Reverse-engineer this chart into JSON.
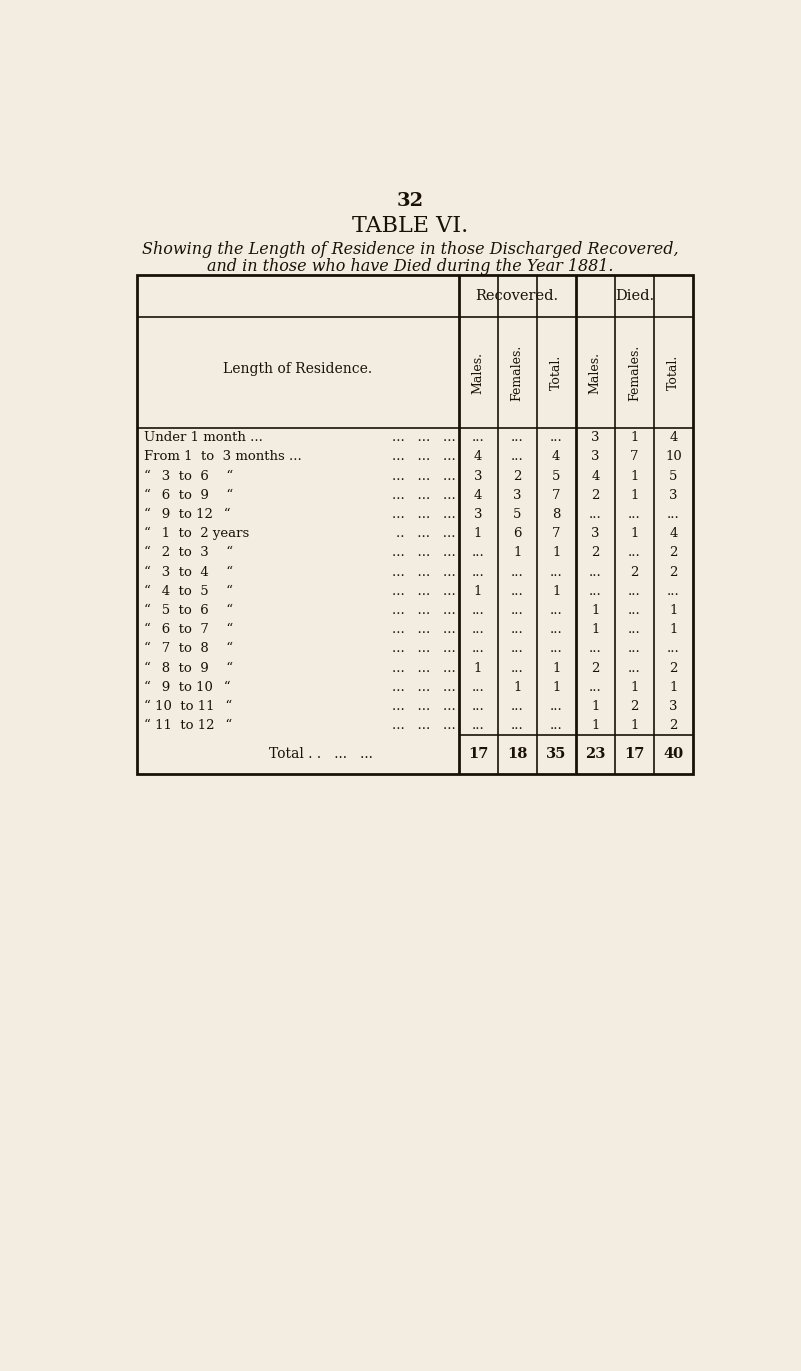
{
  "page_number": "32",
  "title": "TABLE VI.",
  "subtitle_line1": "Showing the Length of Residence in those Discharged Recovered,",
  "subtitle_line2": "and in those who have Died during the Year 1881.",
  "header_col": "Length of Residence.",
  "group_headers": [
    "Recovered.",
    "Died."
  ],
  "col_headers": [
    "Males.",
    "Females.",
    "Total.",
    "Males.",
    "Females.",
    "Total."
  ],
  "rows": [
    {
      "label1": "Under 1 month ...",
      "label2": "   ...   ...   ...",
      "rec_m": "...",
      "rec_f": "...",
      "rec_t": "...",
      "die_m": "3",
      "die_f": "1",
      "die_t": "4"
    },
    {
      "label1": "From 1  to  3 months ...",
      "label2": "   ...   ...   ...",
      "rec_m": "4",
      "rec_f": "...",
      "rec_t": "4",
      "die_m": "3",
      "die_f": "7",
      "die_t": "10"
    },
    {
      "label1": "“ 3  to  6   “",
      "label2": "   ...   ...   ...",
      "rec_m": "3",
      "rec_f": "2",
      "rec_t": "5",
      "die_m": "4",
      "die_f": "1",
      "die_t": "5"
    },
    {
      "label1": "“ 6  to  9   “",
      "label2": "   ...   ...   ...",
      "rec_m": "4",
      "rec_f": "3",
      "rec_t": "7",
      "die_m": "2",
      "die_f": "1",
      "die_t": "3"
    },
    {
      "label1": "“ 9  to 12  “",
      "label2": "   ...   ...   ...",
      "rec_m": "3",
      "rec_f": "5",
      "rec_t": "8",
      "die_m": "...",
      "die_f": "...",
      "die_t": "..."
    },
    {
      "label1": "“ 1  to  2 years",
      "label2": "  ..   ...   ...",
      "rec_m": "1",
      "rec_f": "6",
      "rec_t": "7",
      "die_m": "3",
      "die_f": "1",
      "die_t": "4"
    },
    {
      "label1": "“ 2  to  3   “",
      "label2": "   ...   ...   ...",
      "rec_m": "...",
      "rec_f": "1",
      "rec_t": "1",
      "die_m": "2",
      "die_f": "...",
      "die_t": "2"
    },
    {
      "label1": "“ 3  to  4   “",
      "label2": "   ...   ...   ...",
      "rec_m": "...",
      "rec_f": "...",
      "rec_t": "...",
      "die_m": "...",
      "die_f": "2",
      "die_t": "2"
    },
    {
      "label1": "“ 4  to  5   “",
      "label2": "   ...   ...   ...",
      "rec_m": "1",
      "rec_f": "...",
      "rec_t": "1",
      "die_m": "...",
      "die_f": "...",
      "die_t": "..."
    },
    {
      "label1": "“ 5  to  6   “",
      "label2": "   ...   ...   ...",
      "rec_m": "...",
      "rec_f": "...",
      "rec_t": "...",
      "die_m": "1",
      "die_f": "...",
      "die_t": "1"
    },
    {
      "label1": "“ 6  to  7   “",
      "label2": "   ...   ...   ...",
      "rec_m": "...",
      "rec_f": "...",
      "rec_t": "...",
      "die_m": "1",
      "die_f": "...",
      "die_t": "1"
    },
    {
      "label1": "“ 7  to  8   “",
      "label2": "   ...   ...   ...",
      "rec_m": "...",
      "rec_f": "...",
      "rec_t": "...",
      "die_m": "...",
      "die_f": "...",
      "die_t": "..."
    },
    {
      "label1": "“ 8  to  9   “",
      "label2": "   ...   ...   ...",
      "rec_m": "1",
      "rec_f": "...",
      "rec_t": "1",
      "die_m": "2",
      "die_f": "...",
      "die_t": "2"
    },
    {
      "label1": "“ 9  to 10  “",
      "label2": "   ...   ...   ...",
      "rec_m": "...",
      "rec_f": "1",
      "rec_t": "1",
      "die_m": "...",
      "die_f": "1",
      "die_t": "1"
    },
    {
      "label1": "“ 10  to 11  “",
      "label2": "   ...   ...   ...",
      "rec_m": "...",
      "rec_f": "...",
      "rec_t": "...",
      "die_m": "1",
      "die_f": "2",
      "die_t": "3"
    },
    {
      "label1": "“ 11  to 12  “",
      "label2": "   ...   ...   ...",
      "rec_m": "...",
      "rec_f": "...",
      "rec_t": "...",
      "die_m": "1",
      "die_f": "1",
      "die_t": "2"
    }
  ],
  "total_label": "Total . .   ...   ...",
  "total_vals": [
    "17",
    "18",
    "35",
    "23",
    "17",
    "40"
  ],
  "bg_color": "#f2ede0",
  "text_color": "#1a1008",
  "line_color": "#1a1008"
}
